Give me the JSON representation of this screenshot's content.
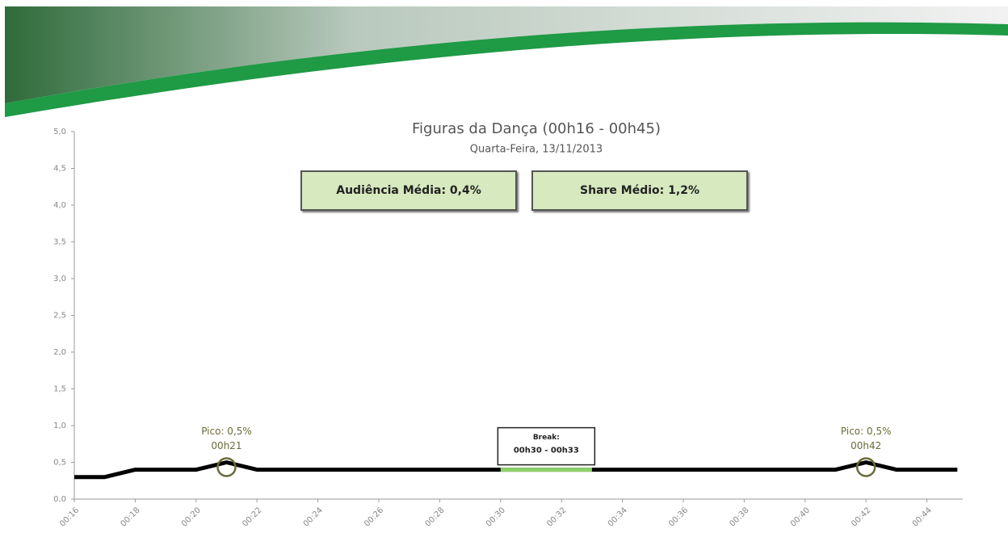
{
  "chart_data": {
    "type": "line",
    "title": "Figuras da Dança (00h16 - 00h45)",
    "subtitle": "Quarta-Feira, 13/11/2013",
    "kpis": [
      "Audiência Média: 0,4%",
      "Share Médio: 1,2%"
    ],
    "categories": [
      "00:16",
      null,
      "00:18",
      null,
      "00:20",
      null,
      "00:22",
      null,
      "00:24",
      null,
      "00:26",
      null,
      "00:28",
      null,
      "00:30",
      null,
      "00:32",
      null,
      "00:34",
      null,
      "00:36",
      null,
      "00:38",
      null,
      "00:40",
      null,
      "00:42",
      null,
      "00:44",
      null
    ],
    "series": [
      {
        "color": "#000000",
        "values": [
          0.3,
          0.3,
          0.4,
          0.4,
          0.4,
          0.5,
          0.4,
          0.4,
          0.4,
          0.4,
          0.4,
          0.4,
          0.4,
          0.4,
          0.4,
          0.4,
          0.4,
          0.4,
          0.4,
          0.4,
          0.4,
          0.4,
          0.4,
          0.4,
          0.4,
          0.4,
          0.5,
          0.4,
          0.4,
          0.4
        ]
      }
    ],
    "peaks": [
      {
        "label": "Pico: 0,5%",
        "time": "00h21"
      },
      {
        "label": "Pico: 0,5%",
        "time": "00h42"
      }
    ],
    "break": {
      "title": "Break:",
      "text": "00h30 - 00h33",
      "color": "#8fd16a",
      "values": [
        null,
        null,
        null,
        null,
        null,
        null,
        null,
        null,
        null,
        null,
        null,
        null,
        null,
        null,
        0.4,
        0.4,
        0.4,
        0.4,
        null,
        null,
        null,
        null,
        null,
        null,
        null,
        null,
        null,
        null,
        null,
        null
      ]
    },
    "ylim": [
      0,
      5
    ],
    "yticks": [
      {
        "value": 0,
        "label": "0,0"
      },
      {
        "value": 0.5,
        "label": "0,5"
      },
      {
        "value": 1,
        "label": "1,0"
      },
      {
        "value": 1.5,
        "label": "1,5"
      },
      {
        "value": 2,
        "label": "2,0"
      },
      {
        "value": 2.5,
        "label": "2,5"
      },
      {
        "value": 3,
        "label": "3,0"
      },
      {
        "value": 3.5,
        "label": "3,5"
      },
      {
        "value": 4,
        "label": "4,0"
      },
      {
        "value": 4.5,
        "label": "4,5"
      },
      {
        "value": 5,
        "label": "5,0"
      }
    ]
  }
}
